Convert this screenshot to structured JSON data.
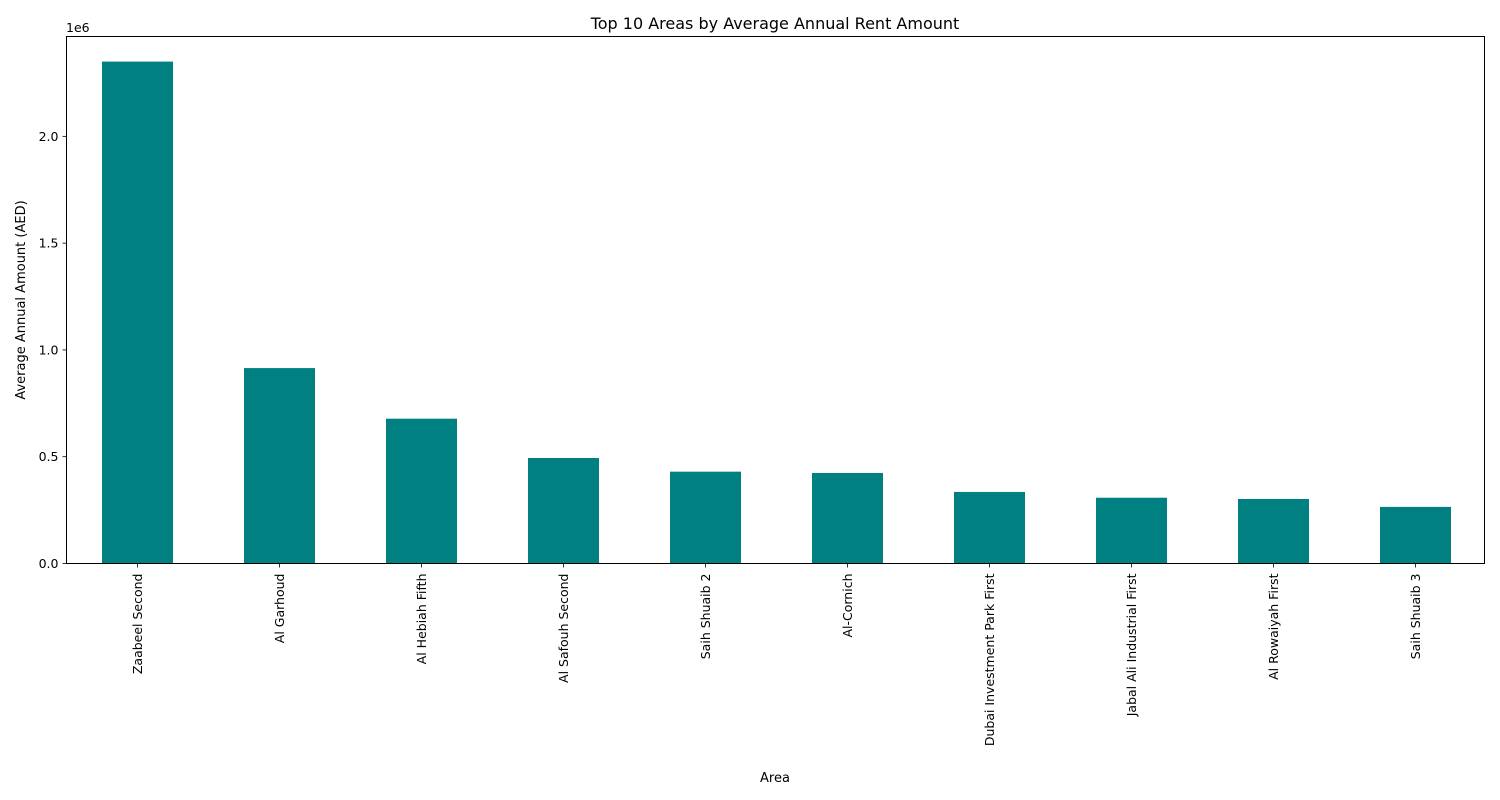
{
  "chart_data": {
    "type": "bar",
    "title": "Top 10 Areas by Average Annual Rent Amount",
    "xlabel": "Area",
    "ylabel": "Average Annual Amount (AED)",
    "y_offset_text": "1e6",
    "y_scale_factor": 1000000,
    "categories": [
      "Zaabeel Second",
      "Al Garhoud",
      "Al Hebiah Fifth",
      "Al Safouh Second",
      "Saih Shuaib 2",
      "Al-Cornich",
      "Dubai Investment Park First",
      "Jabal Ali Industrial First",
      "Al Rowaiyah First",
      "Saih Shuaib 3"
    ],
    "values": [
      2350000,
      915000,
      678000,
      494000,
      430000,
      424000,
      335000,
      308000,
      302000,
      265000
    ],
    "ylim": [
      0,
      2467500
    ],
    "yticks": [
      0.0,
      0.5,
      1.0,
      1.5,
      2.0
    ],
    "ytick_labels": [
      "0.0",
      "0.5",
      "1.0",
      "1.5",
      "2.0"
    ],
    "grid": false,
    "legend": "none",
    "tick_label_rotation": "vertical",
    "colors": {
      "bar": "#008080",
      "axis": "#000000",
      "text": "#000000",
      "background": "#ffffff"
    }
  }
}
